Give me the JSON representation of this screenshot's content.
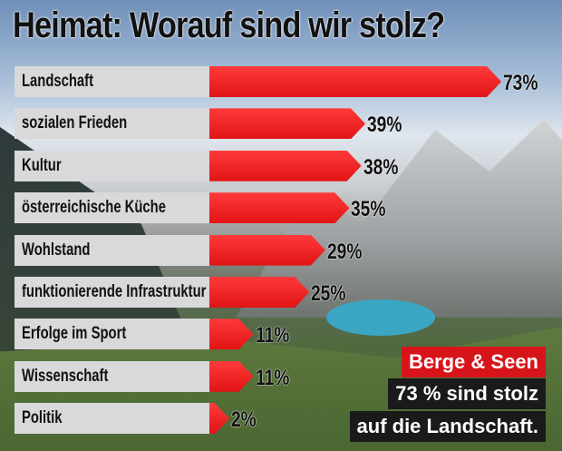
{
  "chart_data": {
    "type": "bar",
    "orientation": "horizontal",
    "title": "Heimat: Worauf sind wir stolz?",
    "categories": [
      "Landschaft",
      "sozialen Frieden",
      "Kultur",
      "österreichische Küche",
      "Wohlstand",
      "funktionierende Infrastruktur",
      "Erfolge im Sport",
      "Wissenschaft",
      "Politik"
    ],
    "values": [
      73,
      39,
      38,
      35,
      29,
      25,
      11,
      11,
      2
    ],
    "value_labels": [
      "73%",
      "39%",
      "38%",
      "35%",
      "29%",
      "25%",
      "11%",
      "11%",
      "2%"
    ],
    "xlim": [
      0,
      73
    ],
    "grid": false,
    "bar_color": "#e8191b",
    "label_box_color": "#d9d9db"
  },
  "callout": {
    "line1": "Berge & Seen",
    "line2": "73 % sind stolz",
    "line3": "auf die Landschaft.",
    "line1_bg": "#d7141a",
    "line2_bg": "#1a1a1a"
  }
}
